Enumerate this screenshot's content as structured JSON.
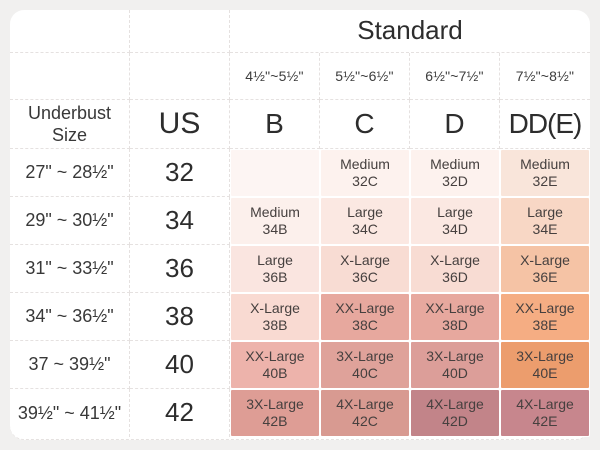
{
  "colors": {
    "page_bg": "#f1f0ef",
    "table_bg": "#ffffff",
    "grid_line": "#e5e1e0",
    "text": "#383838"
  },
  "table": {
    "standard_label": "Standard",
    "underbust_label": "Underbust Size",
    "us_label": "US",
    "ranges": [
      "4½\"~5½\"",
      "5½\"~6½\"",
      "6½\"~7½\"",
      "7½\"~8½\""
    ],
    "cups": [
      "B",
      "C",
      "D",
      "DD(E)"
    ]
  },
  "rows": [
    {
      "underbust": "27\" ~ 28½\"",
      "us": "32",
      "cells": [
        {
          "label": "",
          "size": "",
          "bg": "#fdf5f3"
        },
        {
          "label": "Medium",
          "size": "32C",
          "bg": "#fdf2ee"
        },
        {
          "label": "Medium",
          "size": "32D",
          "bg": "#fdf2ee"
        },
        {
          "label": "Medium",
          "size": "32E",
          "bg": "#f9e5da"
        }
      ]
    },
    {
      "underbust": "29\" ~ 30½\"",
      "us": "34",
      "cells": [
        {
          "label": "Medium",
          "size": "34B",
          "bg": "#fcf0ec"
        },
        {
          "label": "Large",
          "size": "34C",
          "bg": "#fbe8e2"
        },
        {
          "label": "Large",
          "size": "34D",
          "bg": "#fbe8e2"
        },
        {
          "label": "Large",
          "size": "34E",
          "bg": "#f8d7c5"
        }
      ]
    },
    {
      "underbust": "31\" ~ 33½\"",
      "us": "36",
      "cells": [
        {
          "label": "Large",
          "size": "36B",
          "bg": "#fae5e0"
        },
        {
          "label": "X-Large",
          "size": "36C",
          "bg": "#f8dcd3"
        },
        {
          "label": "X-Large",
          "size": "36D",
          "bg": "#f8dcd3"
        },
        {
          "label": "X-Large",
          "size": "36E",
          "bg": "#f5c3a5"
        }
      ]
    },
    {
      "underbust": "34\" ~ 36½\"",
      "us": "38",
      "cells": [
        {
          "label": "X-Large",
          "size": "38B",
          "bg": "#f9dad2"
        },
        {
          "label": "XX-Large",
          "size": "38C",
          "bg": "#e7a89e"
        },
        {
          "label": "XX-Large",
          "size": "38D",
          "bg": "#e7a89e"
        },
        {
          "label": "XX-Large",
          "size": "38E",
          "bg": "#f5ad83"
        }
      ]
    },
    {
      "underbust": "37 ~ 39½\"",
      "us": "40",
      "cells": [
        {
          "label": "XX-Large",
          "size": "40B",
          "bg": "#edb3ab"
        },
        {
          "label": "3X-Large",
          "size": "40C",
          "bg": "#dfa29a"
        },
        {
          "label": "3X-Large",
          "size": "40D",
          "bg": "#dc9e99"
        },
        {
          "label": "3X-Large",
          "size": "40E",
          "bg": "#ec9d6d"
        }
      ]
    },
    {
      "underbust": "39½\" ~ 41½\"",
      "us": "42",
      "cells": [
        {
          "label": "3X-Large",
          "size": "42B",
          "bg": "#de9d95"
        },
        {
          "label": "4X-Large",
          "size": "42C",
          "bg": "#d89a91"
        },
        {
          "label": "4X-Large",
          "size": "42D",
          "bg": "#c28489"
        },
        {
          "label": "4X-Large",
          "size": "42E",
          "bg": "#c7868d"
        }
      ]
    }
  ],
  "chart_data": {
    "type": "table",
    "title": "Standard",
    "columns": [
      "Underbust Size",
      "US",
      "B (4½\"~5½\")",
      "C (5½\"~6½\")",
      "D (6½\"~7½\")",
      "DD(E) (7½\"~8½\")"
    ],
    "rows": [
      [
        "27\" ~ 28½\"",
        "32",
        "",
        "Medium 32C",
        "Medium 32D",
        "Medium 32E"
      ],
      [
        "29\" ~ 30½\"",
        "34",
        "Medium 34B",
        "Large 34C",
        "Large 34D",
        "Large 34E"
      ],
      [
        "31\" ~ 33½\"",
        "36",
        "Large 36B",
        "X-Large 36C",
        "X-Large 36D",
        "X-Large 36E"
      ],
      [
        "34\" ~ 36½\"",
        "38",
        "X-Large 38B",
        "XX-Large 38C",
        "XX-Large 38D",
        "XX-Large 38E"
      ],
      [
        "37 ~ 39½\"",
        "40",
        "XX-Large 40B",
        "3X-Large 40C",
        "3X-Large 40D",
        "3X-Large 40E"
      ],
      [
        "39½\" ~ 41½\"",
        "42",
        "3X-Large 42B",
        "4X-Large 42C",
        "4X-Large 42D",
        "4X-Large 42E"
      ]
    ]
  }
}
